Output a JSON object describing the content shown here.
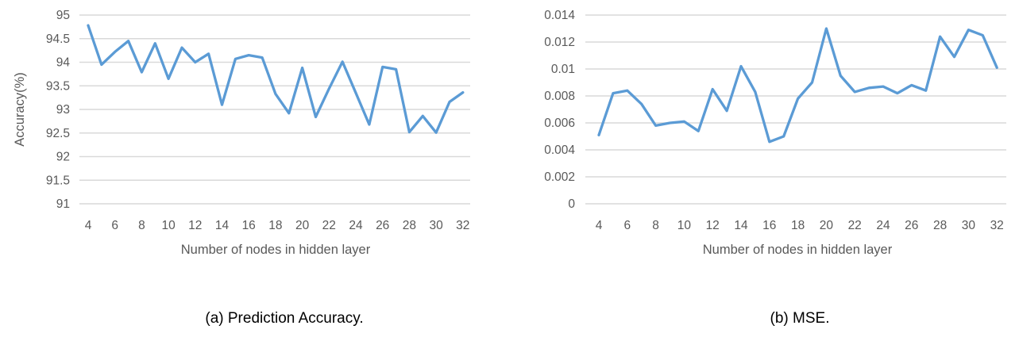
{
  "figure": {
    "description": "Two line charts from a paper figure",
    "captions": {
      "a": "(a) Prediction Accuracy.",
      "b": "(b) MSE."
    }
  },
  "colors": {
    "line": "#5B9BD5",
    "grid": "#D9D9D9",
    "tick_text": "#595959",
    "caption_text": "#000000",
    "background": "#FFFFFF"
  },
  "chart_data": [
    {
      "type": "line",
      "title": "",
      "caption": "(a) Prediction Accuracy.",
      "xlabel": "Number of nodes in hidden layer",
      "ylabel": "Accuracy(%)",
      "x": [
        4,
        5,
        6,
        7,
        8,
        9,
        10,
        11,
        12,
        13,
        14,
        15,
        16,
        17,
        18,
        19,
        20,
        21,
        22,
        23,
        24,
        25,
        26,
        27,
        28,
        29,
        30,
        31,
        32
      ],
      "values": [
        94.78,
        93.95,
        94.22,
        94.45,
        93.79,
        94.4,
        93.65,
        94.31,
        94.0,
        94.18,
        93.1,
        94.07,
        94.15,
        94.1,
        93.33,
        92.92,
        93.88,
        92.84,
        93.44,
        94.01,
        93.35,
        92.68,
        93.9,
        93.85,
        92.52,
        92.86,
        92.51,
        93.16,
        93.36
      ],
      "ylim": [
        91,
        95
      ],
      "ytick_step": 0.5,
      "yticks": [
        "95",
        "94.5",
        "94",
        "93.5",
        "93",
        "92.5",
        "92",
        "91.5",
        "91"
      ],
      "xticks": [
        "4",
        "6",
        "8",
        "10",
        "12",
        "14",
        "16",
        "18",
        "20",
        "22",
        "24",
        "26",
        "28",
        "30",
        "32"
      ],
      "grid": "horizontal-only",
      "legend": "none"
    },
    {
      "type": "line",
      "title": "",
      "caption": "(b) MSE.",
      "xlabel": "Number of nodes in hidden layer",
      "ylabel": "",
      "x": [
        4,
        5,
        6,
        7,
        8,
        9,
        10,
        11,
        12,
        13,
        14,
        15,
        16,
        17,
        18,
        19,
        20,
        21,
        22,
        23,
        24,
        25,
        26,
        27,
        28,
        29,
        30,
        31,
        32
      ],
      "values": [
        0.0051,
        0.0082,
        0.0084,
        0.0074,
        0.0058,
        0.006,
        0.0061,
        0.0054,
        0.0085,
        0.0069,
        0.0102,
        0.0083,
        0.0046,
        0.005,
        0.0078,
        0.009,
        0.013,
        0.0095,
        0.0083,
        0.0086,
        0.0087,
        0.0082,
        0.0088,
        0.0084,
        0.0124,
        0.0109,
        0.0129,
        0.0125,
        0.0101
      ],
      "ylim": [
        0,
        0.014
      ],
      "ytick_step": 0.002,
      "yticks": [
        "0.014",
        "0.012",
        "0.01",
        "0.008",
        "0.006",
        "0.004",
        "0.002",
        "0"
      ],
      "xticks": [
        "4",
        "6",
        "8",
        "10",
        "12",
        "14",
        "16",
        "18",
        "20",
        "22",
        "24",
        "26",
        "28",
        "30",
        "32"
      ],
      "grid": "horizontal-only",
      "legend": "none"
    }
  ]
}
